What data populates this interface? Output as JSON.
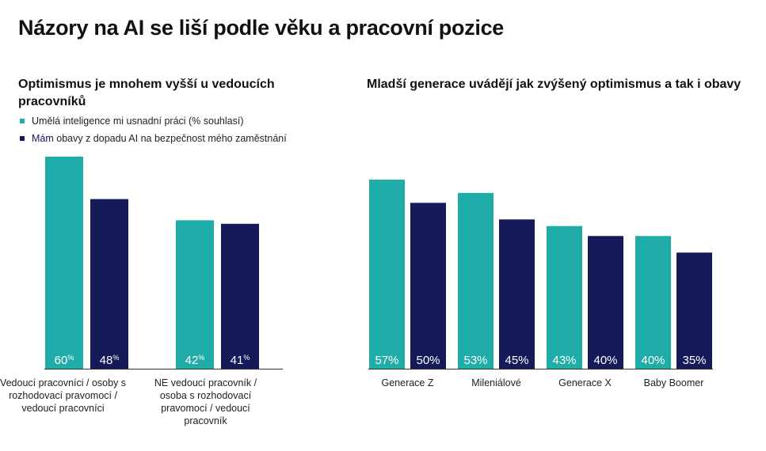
{
  "title": "Názory na AI se liší podle věku a pracovní pozice",
  "colors": {
    "teal": "#20ada9",
    "navy": "#151b59",
    "axis": "#333333"
  },
  "legend": {
    "series1": "Umělá inteligence mi usnadní práci (% souhlasí)",
    "series2_accent": "Mám",
    "series2_rest": " obavy z dopadu AI na bezpečnost mého zaměstnání"
  },
  "chart_data": [
    {
      "type": "bar",
      "title": "Optimismus je mnohem vyšší u vedoucích pracovníků",
      "categories": [
        "Vedoucí pracovníci / osoby s rozhodovací pravomocí / vedoucí pracovníci",
        "NE vedoucí pracovník / osoba s rozhodovací pravomocí / vedoucí pracovník"
      ],
      "series": [
        {
          "name": "Umělá inteligence mi usnadní práci (% souhlasí)",
          "values": [
            60,
            42
          ]
        },
        {
          "name": "Mám obavy z dopadu AI na bezpečnost mého zaměstnání",
          "values": [
            48,
            41
          ]
        }
      ],
      "value_suffix": "%",
      "ylim": [
        0,
        60
      ],
      "grid": false
    },
    {
      "type": "bar",
      "title": "Mladší generace uvádějí jak zvýšený optimismus a tak i obavy",
      "categories": [
        "Generace Z",
        "Mileniálové",
        "Generace X",
        "Baby Boomer"
      ],
      "series": [
        {
          "name": "Umělá inteligence mi usnadní práci (% souhlasí)",
          "values": [
            57,
            53,
            43,
            40
          ]
        },
        {
          "name": "Mám obavy z dopadu AI na bezpečnost mého zaměstnání",
          "values": [
            50,
            45,
            40,
            35
          ]
        }
      ],
      "value_suffix": "%",
      "ylim": [
        0,
        57
      ],
      "grid": false
    }
  ]
}
